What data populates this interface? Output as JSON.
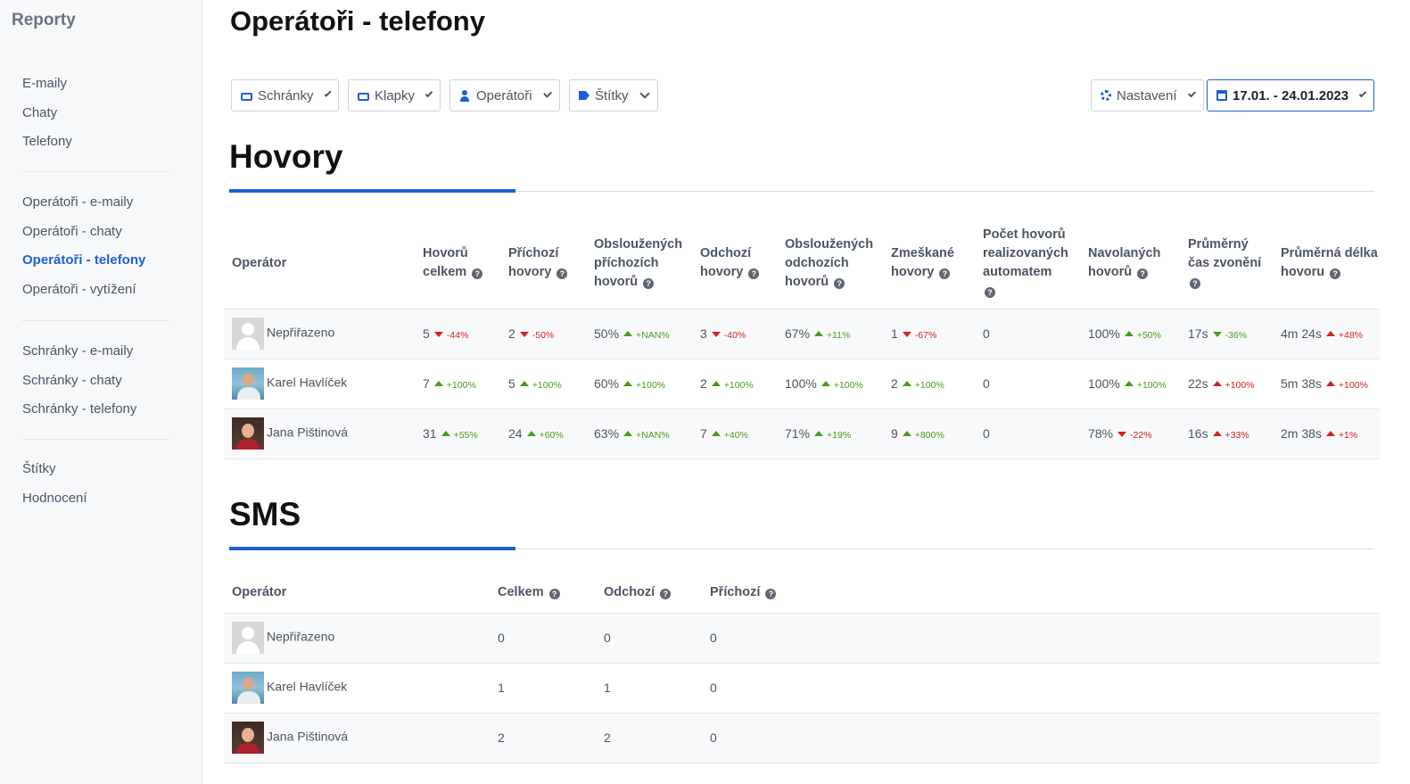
{
  "sidebar": {
    "title": "Reporty",
    "group1": [
      "E-maily",
      "Chaty",
      "Telefony"
    ],
    "group2": [
      "Operátoři - e-maily",
      "Operátoři - chaty",
      "Operátoři - telefony",
      "Operátoři - vytížení"
    ],
    "group3": [
      "Schránky - e-maily",
      "Schránky - chaty",
      "Schránky - telefony"
    ],
    "group4": [
      "Štítky",
      "Hodnocení"
    ],
    "active": "Operátoři - telefony"
  },
  "page": {
    "title": "Operátoři - telefony"
  },
  "filters": {
    "schranky": "Schránky",
    "klapky": "Klapky",
    "operatori": "Operátoři",
    "stitky": "Štítky",
    "nastaveni": "Nastavení",
    "date_range": "17.01. - 24.01.2023"
  },
  "icons": {
    "schranky": "inbox-icon",
    "klapky": "inbox-icon",
    "operatori": "user-icon",
    "stitky": "tags-icon",
    "nastaveni": "gear-icon",
    "date": "calendar-icon",
    "help": "question-circle-icon"
  },
  "colors": {
    "accent": "#1f5fd6",
    "positive": "#4a9a1a",
    "negative": "#d61f1f"
  },
  "calls": {
    "title": "Hovory",
    "headers": {
      "operator": "Operátor",
      "total": "Hovorů celkem",
      "incoming": "Příchozí hovory",
      "handled_in": "Obsloužených příchozích hovorů",
      "outgoing": "Odchozí hovory",
      "handled_out": "Obsloužených odchozích hovorů",
      "missed": "Zmeškané hovory",
      "auto": "Počet hovorů realizovaných automatem",
      "dialed": "Navolaných hovorů",
      "ring": "Průměrný čas zvonění",
      "duration": "Průměrná délka hovoru"
    },
    "rows": [
      {
        "name": "Nepřiřazeno",
        "avatar": "none",
        "total": "5",
        "total_c": "-44%",
        "total_d": "down",
        "incoming": "2",
        "incoming_c": "-50%",
        "incoming_d": "down",
        "handled_in": "50%",
        "handled_in_c": "+NAN%",
        "handled_in_d": "up",
        "outgoing": "3",
        "outgoing_c": "-40%",
        "outgoing_d": "down",
        "handled_out": "67%",
        "handled_out_c": "+11%",
        "handled_out_d": "up",
        "missed": "1",
        "missed_c": "-67%",
        "missed_d": "down",
        "auto": "0",
        "dialed": "100%",
        "dialed_c": "+50%",
        "dialed_d": "up",
        "ring": "17s",
        "ring_c": "-36%",
        "ring_d": "down-green",
        "duration": "4m 24s",
        "duration_c": "+48%",
        "duration_d": "up-red"
      },
      {
        "name": "Karel Havlíček",
        "avatar": "karel",
        "total": "7",
        "total_c": "+100%",
        "total_d": "up",
        "incoming": "5",
        "incoming_c": "+100%",
        "incoming_d": "up",
        "handled_in": "60%",
        "handled_in_c": "+100%",
        "handled_in_d": "up",
        "outgoing": "2",
        "outgoing_c": "+100%",
        "outgoing_d": "up",
        "handled_out": "100%",
        "handled_out_c": "+100%",
        "handled_out_d": "up",
        "missed": "2",
        "missed_c": "+100%",
        "missed_d": "up",
        "auto": "0",
        "dialed": "100%",
        "dialed_c": "+100%",
        "dialed_d": "up",
        "ring": "22s",
        "ring_c": "+100%",
        "ring_d": "up-red",
        "duration": "5m 38s",
        "duration_c": "+100%",
        "duration_d": "up-red"
      },
      {
        "name": "Jana Pištinová",
        "avatar": "jana",
        "total": "31",
        "total_c": "+55%",
        "total_d": "up",
        "incoming": "24",
        "incoming_c": "+60%",
        "incoming_d": "up",
        "handled_in": "63%",
        "handled_in_c": "+NAN%",
        "handled_in_d": "up",
        "outgoing": "7",
        "outgoing_c": "+40%",
        "outgoing_d": "up",
        "handled_out": "71%",
        "handled_out_c": "+19%",
        "handled_out_d": "up",
        "missed": "9",
        "missed_c": "+800%",
        "missed_d": "up",
        "auto": "0",
        "dialed": "78%",
        "dialed_c": "-22%",
        "dialed_d": "down",
        "ring": "16s",
        "ring_c": "+33%",
        "ring_d": "up-red",
        "duration": "2m 38s",
        "duration_c": "+1%",
        "duration_d": "up-red"
      }
    ]
  },
  "sms": {
    "title": "SMS",
    "headers": {
      "operator": "Operátor",
      "total": "Celkem",
      "outgoing": "Odchozí",
      "incoming": "Příchozí"
    },
    "rows": [
      {
        "name": "Nepřiřazeno",
        "avatar": "none",
        "total": "0",
        "outgoing": "0",
        "incoming": "0"
      },
      {
        "name": "Karel Havlíček",
        "avatar": "karel",
        "total": "1",
        "outgoing": "1",
        "incoming": "0"
      },
      {
        "name": "Jana Pištinová",
        "avatar": "jana",
        "total": "2",
        "outgoing": "2",
        "incoming": "0"
      }
    ]
  }
}
